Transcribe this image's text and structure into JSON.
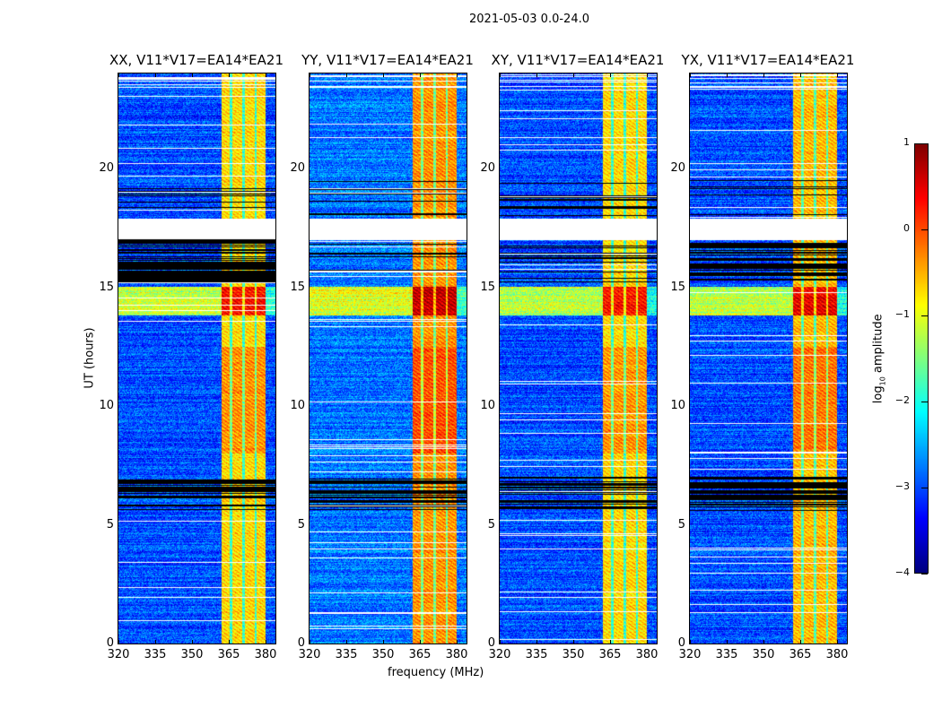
{
  "figure": {
    "suptitle": "2021-05-03 0.0-24.0"
  },
  "chart_data": {
    "type": "heatmap",
    "xlabel": "frequency (MHz)",
    "ylabel": "UT (hours)",
    "xlim": [
      320,
      384
    ],
    "ylim": [
      0,
      24
    ],
    "xticks": [
      "320",
      "335",
      "350",
      "365",
      "380"
    ],
    "xtick_values": [
      320,
      335,
      350,
      365,
      380
    ],
    "yticks": [
      "0",
      "5",
      "10",
      "15",
      "20"
    ],
    "ytick_values": [
      0,
      5,
      10,
      15,
      20
    ],
    "colormap": "jet",
    "colorbar": {
      "label_main": "log",
      "label_sub": "10",
      "label_rest": " amplitude",
      "range": [
        -4,
        1
      ],
      "ticks": [
        "1",
        "0",
        "−1",
        "−2",
        "−3",
        "−4"
      ],
      "tick_values": [
        1,
        0,
        -1,
        -2,
        -3,
        -4
      ]
    },
    "rfi_band_mhz": [
      362,
      380
    ],
    "subband_gaps_mhz": [
      366,
      371,
      376
    ],
    "strong_rfi_hours": [
      13.8,
      15.0
    ],
    "blank_hours": [
      [
        17.0,
        17.9
      ]
    ],
    "flagged_black_hours_all": [
      [
        5.6,
        7.0
      ]
    ],
    "flagged_black_hours_some": [
      [
        15.2,
        17.0
      ]
    ],
    "panels": [
      {
        "title": "XX, V11*V17=EA14*EA21",
        "background_level": -3.0,
        "band_level": -0.7,
        "black_15_17": true
      },
      {
        "title": "YY, V11*V17=EA14*EA21",
        "background_level": -2.8,
        "band_level": -0.35,
        "black_15_17": false
      },
      {
        "title": "XY, V11*V17=EA14*EA21",
        "background_level": -3.0,
        "band_level": -0.7,
        "black_15_17": false
      },
      {
        "title": "YX, V11*V17=EA14*EA21",
        "background_level": -3.0,
        "band_level": -0.55,
        "black_15_17": true
      }
    ]
  }
}
